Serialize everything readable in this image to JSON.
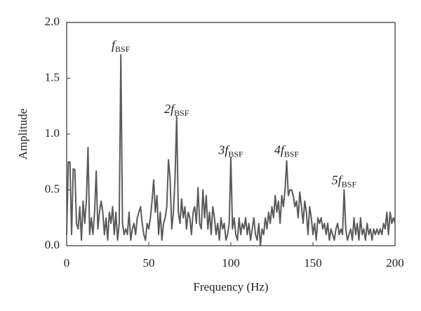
{
  "chart_data": {
    "type": "line",
    "xlabel": "Frequency (Hz)",
    "ylabel": "Amplitude",
    "xlim": [
      0,
      200
    ],
    "xticks": [
      0,
      50,
      100,
      150,
      200
    ],
    "ylim": [
      0,
      2.0
    ],
    "yticks": [
      {
        "value": 0,
        "label": "0.0"
      },
      {
        "value": 0.5,
        "label": "0.5"
      },
      {
        "value": 1.0,
        "label": "1.0"
      },
      {
        "value": 1.5,
        "label": "1.5"
      },
      {
        "value": 2.0,
        "label": "2.0"
      }
    ],
    "color": "#5a5a5a",
    "x": [
      0,
      1,
      2,
      3,
      4,
      5,
      6,
      7,
      8,
      9,
      10,
      11,
      12,
      13,
      14,
      15,
      16,
      17,
      18,
      19,
      20,
      21,
      22,
      23,
      24,
      25,
      26,
      27,
      28,
      29,
      30,
      31,
      32,
      33,
      34,
      35,
      36,
      37,
      38,
      39,
      40,
      41,
      42,
      43,
      44,
      45,
      46,
      47,
      48,
      49,
      50,
      51,
      52,
      53,
      54,
      55,
      56,
      57,
      58,
      59,
      60,
      61,
      62,
      63,
      64,
      65,
      66,
      67,
      68,
      69,
      70,
      71,
      72,
      73,
      74,
      75,
      76,
      77,
      78,
      79,
      80,
      81,
      82,
      83,
      84,
      85,
      86,
      87,
      88,
      89,
      90,
      91,
      92,
      93,
      94,
      95,
      96,
      97,
      98,
      99,
      100,
      101,
      102,
      103,
      104,
      105,
      106,
      107,
      108,
      109,
      110,
      111,
      112,
      113,
      114,
      115,
      116,
      117,
      118,
      119,
      120,
      121,
      122,
      123,
      124,
      125,
      126,
      127,
      128,
      129,
      130,
      131,
      132,
      133,
      134,
      135,
      136,
      137,
      138,
      139,
      140,
      141,
      142,
      143,
      144,
      145,
      146,
      147,
      148,
      149,
      150,
      151,
      152,
      153,
      154,
      155,
      156,
      157,
      158,
      159,
      160,
      161,
      162,
      163,
      164,
      165,
      166,
      167,
      168,
      169,
      170,
      171,
      172,
      173,
      174,
      175,
      176,
      177,
      178,
      179,
      180,
      181,
      182,
      183,
      184,
      185,
      186,
      187,
      188,
      189,
      190,
      191,
      192,
      193,
      194,
      195,
      196,
      197,
      198,
      199,
      200
    ],
    "values": [
      0.1,
      0.75,
      0.75,
      0.1,
      0.69,
      0.68,
      0.2,
      0.15,
      0.35,
      0.05,
      0.4,
      0.2,
      0.4,
      0.88,
      0.1,
      0.25,
      0.1,
      0.3,
      0.67,
      0.15,
      0.3,
      0.4,
      0.3,
      0.1,
      0.25,
      0.05,
      0.3,
      0.2,
      0.35,
      0.1,
      0.3,
      0.05,
      0.2,
      1.71,
      0.2,
      0.1,
      0.15,
      0.1,
      0.3,
      0.05,
      0.15,
      0.2,
      0.1,
      0.25,
      0.3,
      0.35,
      0.2,
      0.1,
      0.05,
      0.2,
      0.15,
      0.25,
      0.4,
      0.59,
      0.3,
      0.45,
      0.1,
      0.3,
      0.05,
      0.2,
      0.25,
      0.35,
      0.77,
      0.6,
      0.15,
      0.3,
      0.6,
      1.16,
      0.3,
      0.2,
      0.42,
      0.25,
      0.35,
      0.15,
      0.3,
      0.25,
      0.1,
      0.3,
      0.35,
      0.2,
      0.52,
      0.2,
      0.15,
      0.5,
      0.25,
      0.45,
      0.15,
      0.3,
      0.1,
      0.35,
      0.25,
      0.1,
      0.2,
      0.05,
      0.25,
      0.15,
      0.2,
      0.05,
      0.1,
      0.2,
      0.79,
      0.15,
      0.25,
      0.1,
      0.05,
      0.25,
      0.1,
      0.2,
      0.15,
      0.25,
      0.1,
      0.2,
      0.05,
      0.15,
      0.25,
      0.1,
      0.05,
      0.2,
      0.0,
      0.15,
      0.1,
      0.25,
      0.15,
      0.3,
      0.2,
      0.35,
      0.25,
      0.45,
      0.3,
      0.4,
      0.2,
      0.45,
      0.35,
      0.5,
      0.76,
      0.45,
      0.5,
      0.5,
      0.45,
      0.35,
      0.4,
      0.25,
      0.48,
      0.35,
      0.2,
      0.4,
      0.3,
      0.1,
      0.35,
      0.25,
      0.1,
      0.2,
      0.05,
      0.25,
      0.2,
      0.25,
      0.15,
      0.2,
      0.1,
      0.2,
      0.05,
      0.15,
      0.1,
      0.05,
      0.15,
      0.2,
      0.1,
      0.15,
      0.1,
      0.5,
      0.15,
      0.05,
      0.1,
      0.15,
      0.05,
      0.25,
      0.1,
      0.2,
      0.05,
      0.25,
      0.1,
      0.15,
      0.05,
      0.2,
      0.1,
      0.15,
      0.05,
      0.15,
      0.1,
      0.15,
      0.1,
      0.15,
      0.1,
      0.2,
      0.15,
      0.3,
      0.1,
      0.3,
      0.2,
      0.25,
      0.2
    ],
    "annotations": [
      {
        "text": "f",
        "sub": "BSF",
        "x": 33,
        "y": 1.76
      },
      {
        "text": "2f",
        "sub": "BSF",
        "x": 67,
        "y": 1.19
      },
      {
        "text": "3f",
        "sub": "BSF",
        "x": 100,
        "y": 0.82
      },
      {
        "text": "4f",
        "sub": "BSF",
        "x": 134,
        "y": 0.82
      },
      {
        "text": "5f",
        "sub": "BSF",
        "x": 169,
        "y": 0.55
      }
    ]
  }
}
